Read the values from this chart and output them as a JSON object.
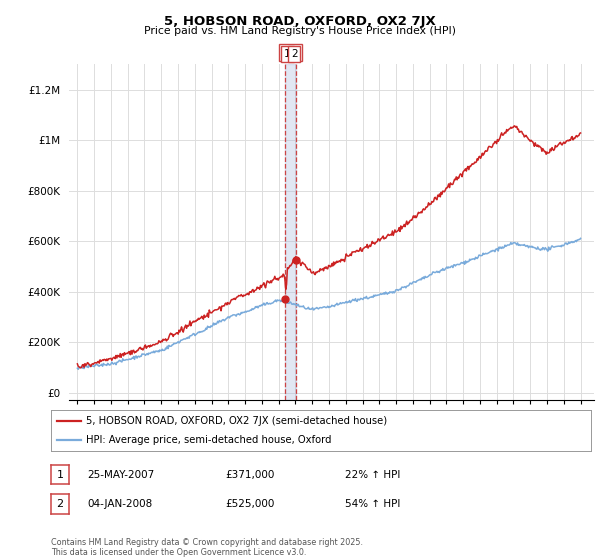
{
  "title": "5, HOBSON ROAD, OXFORD, OX2 7JX",
  "subtitle": "Price paid vs. HM Land Registry's House Price Index (HPI)",
  "legend_line1": "5, HOBSON ROAD, OXFORD, OX2 7JX (semi-detached house)",
  "legend_line2": "HPI: Average price, semi-detached house, Oxford",
  "footnote": "Contains HM Land Registry data © Crown copyright and database right 2025.\nThis data is licensed under the Open Government Licence v3.0.",
  "transaction1_date": "25-MAY-2007",
  "transaction1_price": "£371,000",
  "transaction1_hpi": "22% ↑ HPI",
  "transaction2_date": "04-JAN-2008",
  "transaction2_price": "£525,000",
  "transaction2_hpi": "54% ↑ HPI",
  "hpi_color": "#7aabdb",
  "price_color": "#cc2222",
  "vline_color": "#aabbdd",
  "vline_dash_color": "#cc4444",
  "marker1_x": 2007.39,
  "marker1_y": 371000,
  "marker2_x": 2008.01,
  "marker2_y": 525000,
  "vline_x1": 2007.39,
  "vline_x2": 2008.01,
  "ylim_max": 1300000,
  "ylim_min": -30000,
  "xlim_min": 1994.5,
  "xlim_max": 2025.8,
  "yticks": [
    0,
    200000,
    400000,
    600000,
    800000,
    1000000,
    1200000
  ],
  "ytick_labels": [
    "£0",
    "£200K",
    "£400K",
    "£600K",
    "£800K",
    "£1M",
    "£1.2M"
  ],
  "xticks": [
    1995,
    1996,
    1997,
    1998,
    1999,
    2000,
    2001,
    2002,
    2003,
    2004,
    2005,
    2006,
    2007,
    2008,
    2009,
    2010,
    2011,
    2012,
    2013,
    2014,
    2015,
    2016,
    2017,
    2018,
    2019,
    2020,
    2021,
    2022,
    2023,
    2024,
    2025
  ],
  "bg_color": "#ffffff",
  "grid_color": "#dddddd",
  "label_box_color": "#aabbdd"
}
